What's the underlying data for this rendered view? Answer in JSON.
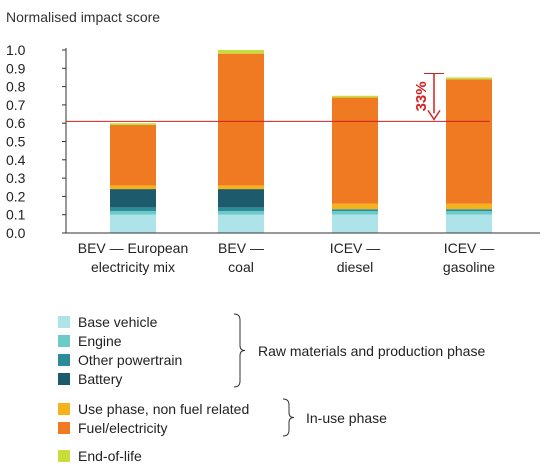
{
  "chart_data": {
    "type": "bar",
    "stacked": true,
    "title": "Normalised impact score",
    "ylim": [
      0,
      1.0
    ],
    "y_ticks": [
      "0.0",
      "0.1",
      "0.2",
      "0.3",
      "0.4",
      "0.5",
      "0.6",
      "0.7",
      "0.8",
      "0.9",
      "1.0"
    ],
    "categories": [
      [
        "BEV — European",
        "electricity mix"
      ],
      [
        "BEV —",
        "coal"
      ],
      [
        "ICEV —",
        "diesel"
      ],
      [
        "ICEV —",
        "gasoline"
      ]
    ],
    "series": [
      {
        "name": "Base vehicle",
        "color": "#aee3ea",
        "values": [
          0.1,
          0.1,
          0.1,
          0.1
        ]
      },
      {
        "name": "Engine",
        "color": "#6ccbc8",
        "values": [
          0.02,
          0.02,
          0.02,
          0.02
        ]
      },
      {
        "name": "Other powertrain",
        "color": "#2c8c9a",
        "values": [
          0.02,
          0.02,
          0.01,
          0.01
        ]
      },
      {
        "name": "Battery",
        "color": "#1d5a6c",
        "values": [
          0.1,
          0.1,
          0.0,
          0.0
        ]
      },
      {
        "name": "Use phase, non fuel related",
        "color": "#f6b21a",
        "values": [
          0.02,
          0.02,
          0.03,
          0.03
        ]
      },
      {
        "name": "Fuel/electricity",
        "color": "#f07a22",
        "values": [
          0.33,
          0.72,
          0.58,
          0.68
        ]
      },
      {
        "name": "End-of-life",
        "color": "#c8dc3c",
        "values": [
          0.01,
          0.02,
          0.01,
          0.01
        ]
      }
    ],
    "reference_line": {
      "value": 0.61,
      "color": "#d42020"
    },
    "annotation": {
      "text": "33%",
      "color": "#d42020",
      "category_index": 3
    },
    "legend_groups": [
      {
        "label": "Raw materials and production phase",
        "items": [
          0,
          1,
          2,
          3
        ]
      },
      {
        "label": "In-use phase",
        "items": [
          4,
          5
        ]
      },
      {
        "label": "",
        "items": [
          6
        ]
      }
    ]
  }
}
